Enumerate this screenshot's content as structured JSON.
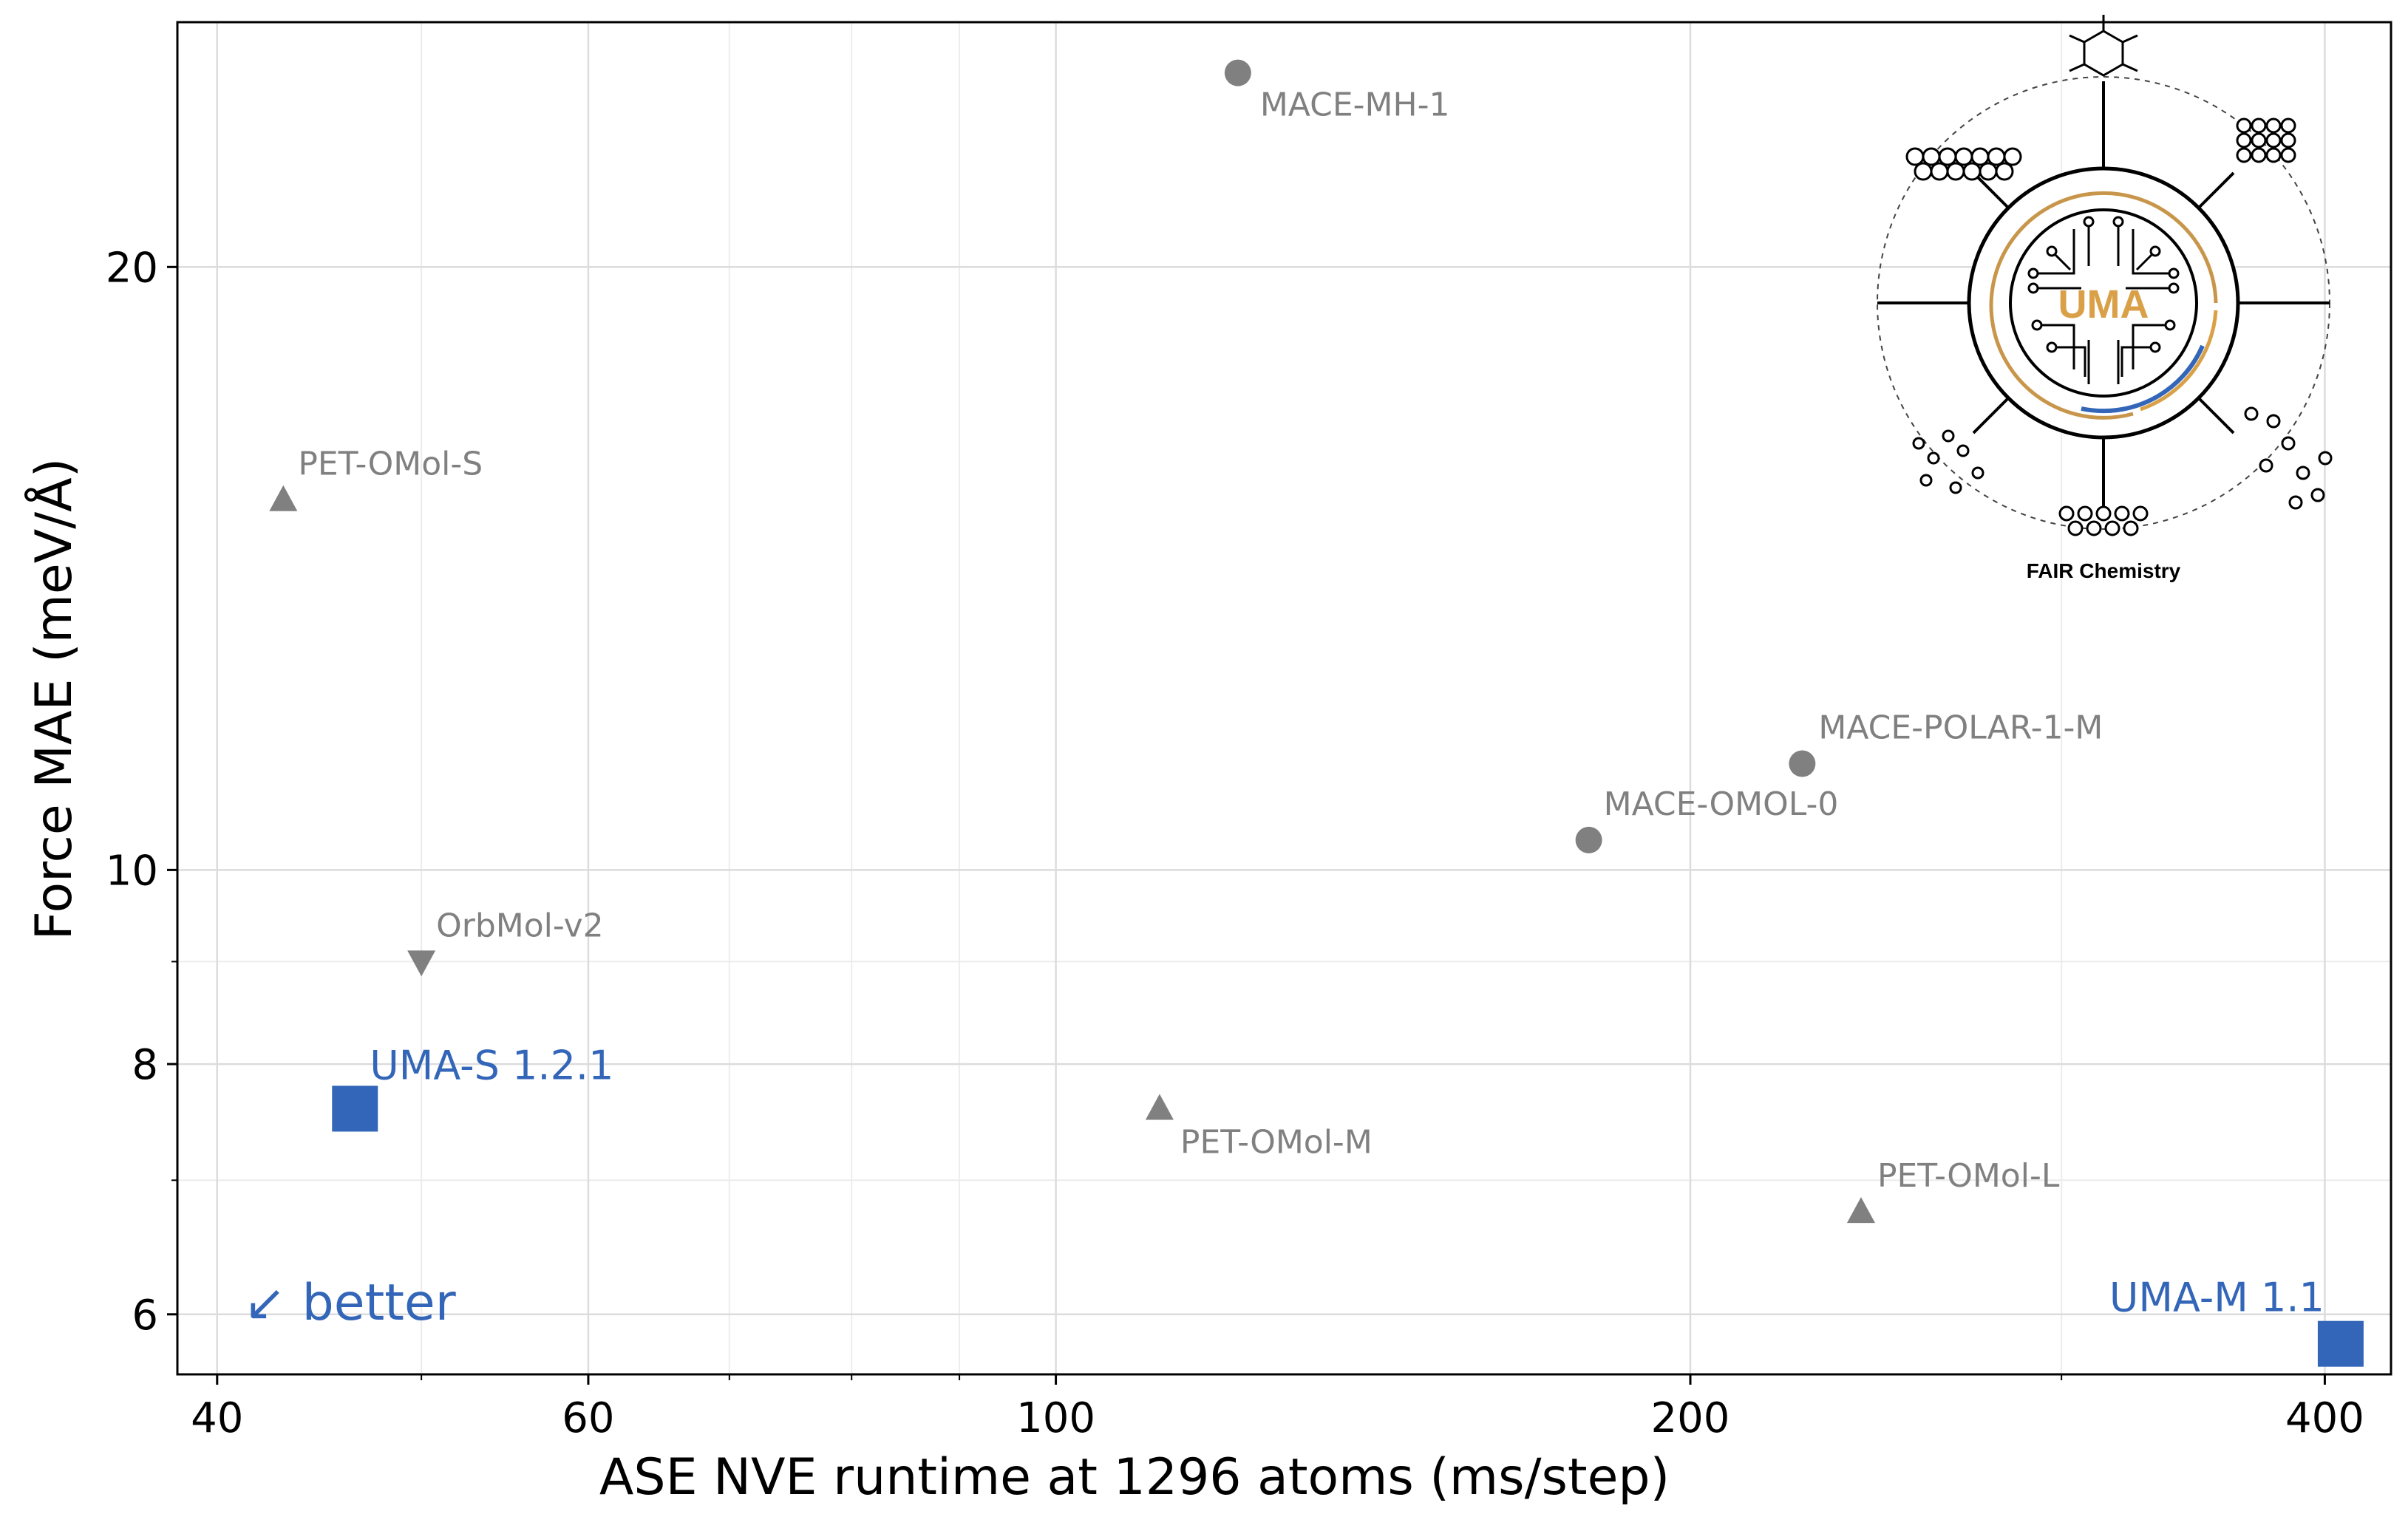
{
  "chart_data": {
    "type": "scatter",
    "title": "",
    "xlabel": "ASE NVE runtime at 1296 atoms (ms/step)",
    "ylabel": "Force MAE (meV/Å)",
    "xscale": "log",
    "yscale": "log",
    "xlim": [
      38.3,
      430
    ],
    "ylim": [
      5.6,
      26.5
    ],
    "x_major_ticks": [
      40,
      60,
      100,
      200,
      400
    ],
    "x_tick_labels": [
      "40",
      "60",
      "100",
      "200",
      "400"
    ],
    "x_minor_ticks": [
      50,
      70,
      80,
      90,
      300
    ],
    "y_major_ticks": [
      6,
      8,
      10,
      20
    ],
    "y_tick_labels": [
      "6",
      "8",
      "10",
      "20"
    ],
    "y_minor_ticks": [
      7,
      9
    ],
    "grid": true,
    "annotation": "↙ better",
    "points": [
      {
        "label": "MACE-MH-1",
        "x": 122,
        "y": 25.0,
        "marker": "circle",
        "color": "#808080"
      },
      {
        "label": "PET-OMol-S",
        "x": 43,
        "y": 15.3,
        "marker": "triangle-up",
        "color": "#808080"
      },
      {
        "label": "MACE-POLAR-1-M",
        "x": 226,
        "y": 11.3,
        "marker": "circle",
        "color": "#808080"
      },
      {
        "label": "MACE-OMOL-0",
        "x": 179,
        "y": 10.35,
        "marker": "circle",
        "color": "#808080"
      },
      {
        "label": "OrbMol-v2",
        "x": 50,
        "y": 9.0,
        "marker": "triangle-down",
        "color": "#808080"
      },
      {
        "label": "UMA-S 1.2.1",
        "x": 46.5,
        "y": 7.6,
        "marker": "square",
        "color": "#3366b8"
      },
      {
        "label": "PET-OMol-M",
        "x": 112,
        "y": 7.6,
        "marker": "triangle-up",
        "color": "#808080"
      },
      {
        "label": "PET-OMol-L",
        "x": 241,
        "y": 6.75,
        "marker": "triangle-up",
        "color": "#808080"
      },
      {
        "label": "UMA-M 1.1",
        "x": 407,
        "y": 5.8,
        "marker": "square",
        "color": "#3366b8"
      }
    ]
  },
  "logo": {
    "name": "UMA",
    "caption": "FAIR Chemistry"
  }
}
